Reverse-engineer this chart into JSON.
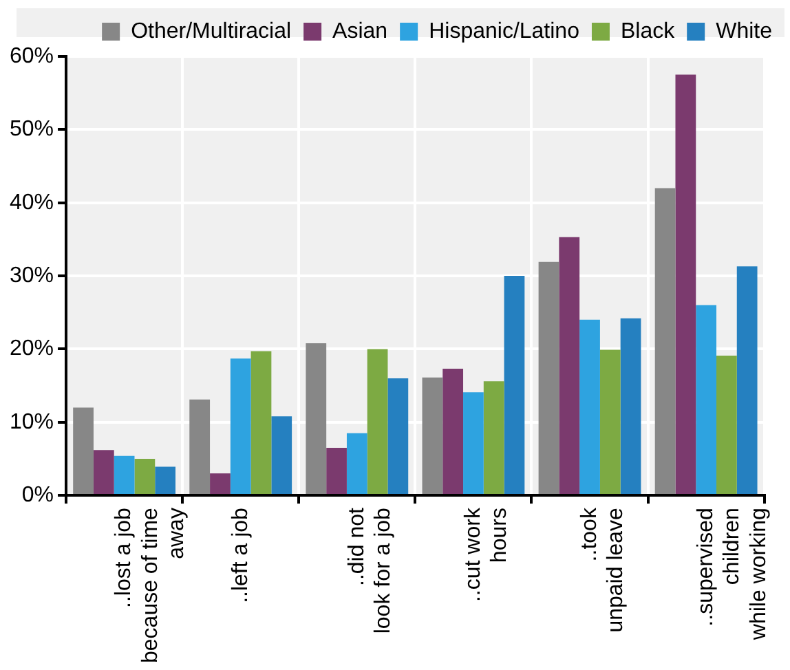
{
  "chart_data": {
    "type": "bar",
    "categories": [
      "..lost a job\nbecause of time\naway",
      "..left a job",
      "..did not\nlook for a job",
      "..cut work\nhours",
      "..took\nunpaid leave",
      "..supervised\nchildren\nwhile working"
    ],
    "series": [
      {
        "name": "Other/Multiracial",
        "color": "#878787",
        "values": [
          12.0,
          13.1,
          20.8,
          16.1,
          31.9,
          42.0
        ]
      },
      {
        "name": "Asian",
        "color": "#7b3a6e",
        "values": [
          6.2,
          3.0,
          6.5,
          17.3,
          35.3,
          57.5
        ]
      },
      {
        "name": "Hispanic/Latino",
        "color": "#2ea3e0",
        "values": [
          5.4,
          18.7,
          8.5,
          14.1,
          24.0,
          26.0
        ]
      },
      {
        "name": "Black",
        "color": "#7daa43",
        "values": [
          5.0,
          19.7,
          20.0,
          15.6,
          19.9,
          19.1
        ]
      },
      {
        "name": "White",
        "color": "#2580c0",
        "values": [
          3.9,
          10.8,
          16.0,
          30.0,
          24.2,
          31.3
        ]
      }
    ],
    "ylim": [
      0,
      60
    ],
    "yticks": [
      {
        "value": 0,
        "label": "0%"
      },
      {
        "value": 10,
        "label": "10%"
      },
      {
        "value": 20,
        "label": "20%"
      },
      {
        "value": 30,
        "label": "30%"
      },
      {
        "value": 40,
        "label": "40%"
      },
      {
        "value": 50,
        "label": "50%"
      },
      {
        "value": 60,
        "label": "60%"
      }
    ],
    "grid": true,
    "legend": "top"
  }
}
